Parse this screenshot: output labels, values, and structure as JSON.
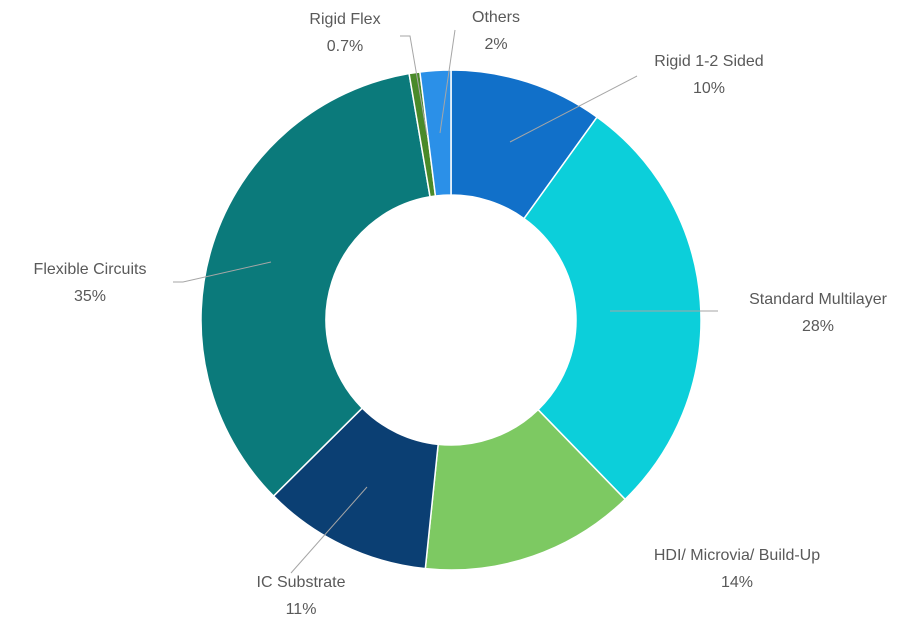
{
  "chart_data": {
    "type": "donut",
    "categories": [
      "Rigid 1-2 Sided",
      "Standard Multilayer",
      "HDI/ Microvia/ Build-Up",
      "IC Substrate",
      "Flexible Circuits",
      "Rigid Flex",
      "Others"
    ],
    "values": [
      10,
      28,
      14,
      11,
      35,
      0.7,
      2
    ],
    "value_labels": [
      "10%",
      "28%",
      "14%",
      "11%",
      "35%",
      "0.7%",
      "2%"
    ],
    "colors": [
      "#1170c9",
      "#0ccfda",
      "#7dc962",
      "#0b3f73",
      "#0b7a7b",
      "#4a8a2a",
      "#2b90e8"
    ]
  }
}
